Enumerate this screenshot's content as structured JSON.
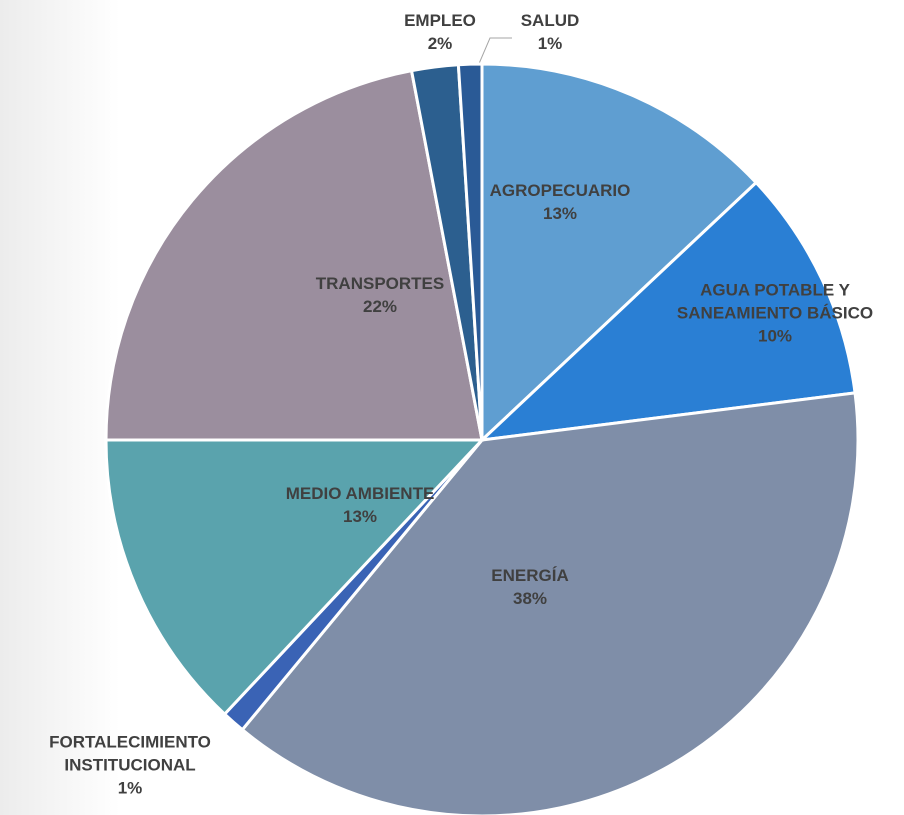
{
  "chart_data": {
    "type": "pie",
    "categories": [
      "AGROPECUARIO",
      "AGUA POTABLE Y SANEAMIENTO BÁSICO",
      "ENERGÍA",
      "FORTALECIMIENTO INSTITUCIONAL",
      "MEDIO AMBIENTE",
      "TRANSPORTES",
      "EMPLEO",
      "SALUD"
    ],
    "values": [
      13,
      10,
      38,
      1,
      13,
      22,
      2,
      1
    ],
    "value_labels": [
      "13%",
      "10%",
      "38%",
      "1%",
      "13%",
      "22%",
      "2%",
      "1%"
    ],
    "colors": [
      "#5f9ed1",
      "#2a7fd4",
      "#7f8ea8",
      "#3a63b5",
      "#5aa3ad",
      "#9b8e9e",
      "#2c5f8f",
      "#2a5a96"
    ]
  }
}
